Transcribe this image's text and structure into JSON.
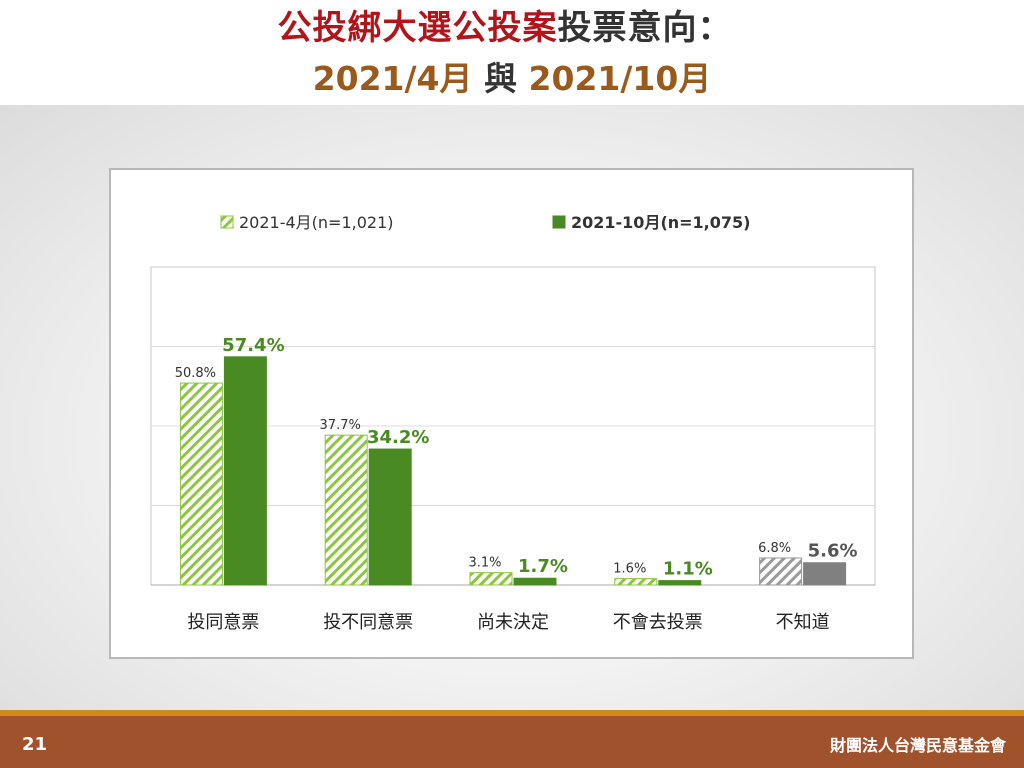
{
  "title": {
    "line1_part1": "公投綁大選公投案",
    "line1_part2": "投票意向：",
    "line2_part1": "2021/4月",
    "line2_part2": " 與 ",
    "line2_part3": "2021/10月"
  },
  "colors": {
    "title_red": "#b1151b",
    "title_brown": "#9a5a1c",
    "series_apr": "#8cc63f",
    "series_oct": "#4a8a22",
    "unknown_gray": "#808080",
    "footer": "#a0522d",
    "footer_line": "#cf8a1c"
  },
  "chart_data": {
    "type": "bar",
    "categories": [
      "投同意票",
      "投不同意票",
      "尚未決定",
      "不會去投票",
      "不知道"
    ],
    "series": [
      {
        "name": "2021-4月(n=1,021)",
        "values": [
          50.8,
          37.7,
          3.1,
          1.6,
          6.8
        ],
        "labels": [
          "50.8%",
          "37.7%",
          "3.1%",
          "1.6%",
          "6.8%"
        ],
        "style": "hatched"
      },
      {
        "name": "2021-10月(n=1,075)",
        "values": [
          57.4,
          34.2,
          1.7,
          1.1,
          5.6
        ],
        "labels": [
          "57.4%",
          "34.2%",
          "1.7%",
          "1.1%",
          "5.6%"
        ],
        "style": "solid"
      }
    ],
    "ylim": [
      0,
      80
    ],
    "grid": true,
    "legend_position": "top"
  },
  "footer": {
    "page_number": "21",
    "organization": "財團法人台灣民意基金會"
  }
}
